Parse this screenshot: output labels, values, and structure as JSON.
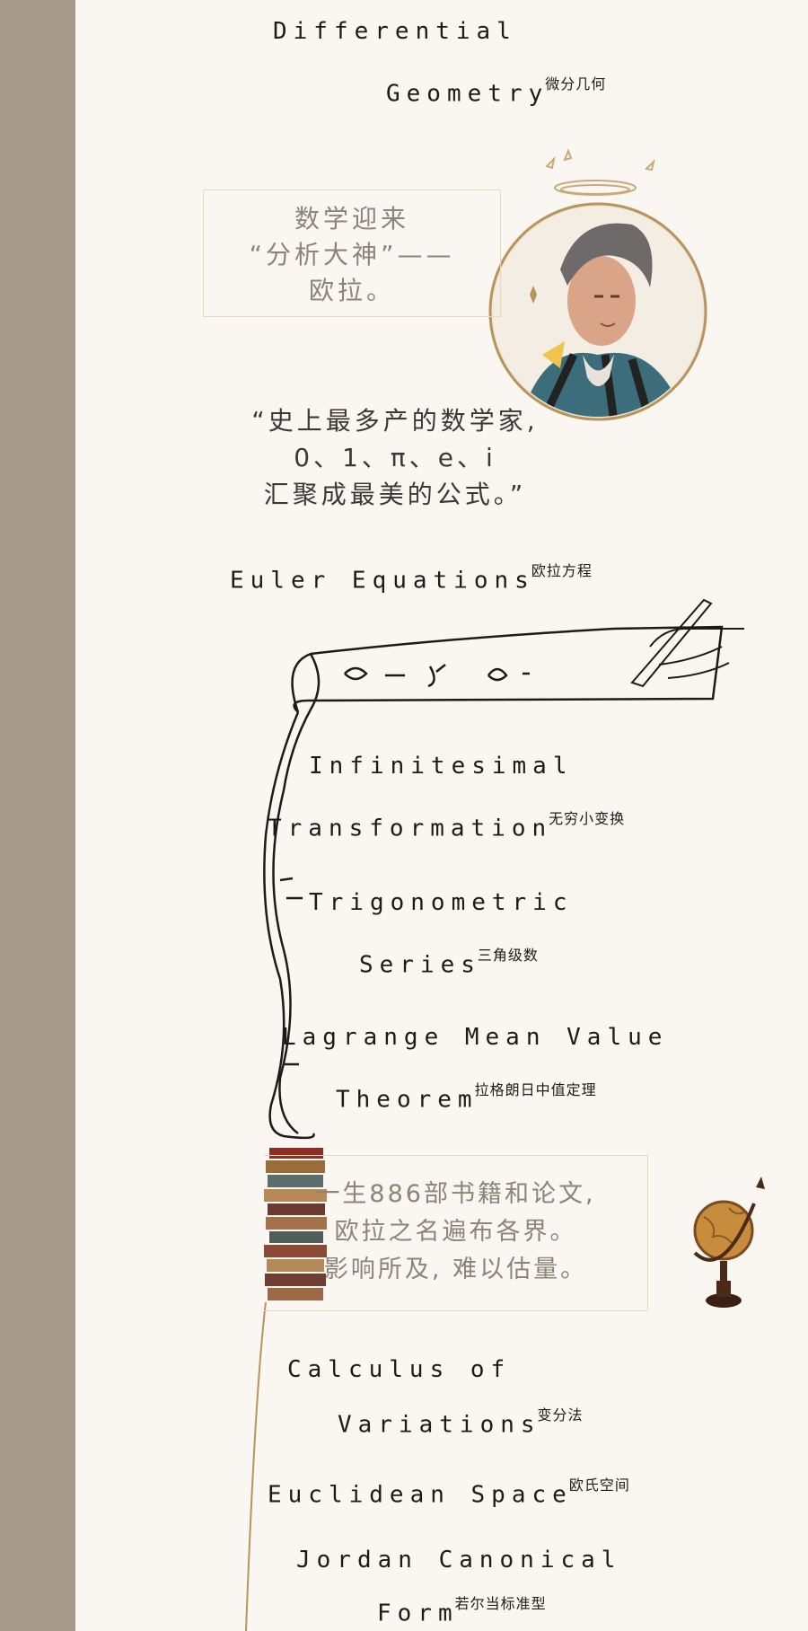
{
  "sections": {
    "differential": {
      "line1": "Differential",
      "line2": "Geometry",
      "cn": "微分几何"
    },
    "intro_box": {
      "lines": [
        "数学迎来",
        "“分析大神”——",
        "欧拉。"
      ]
    },
    "quote": {
      "lines": [
        "“史上最多产的数学家,",
        "0、1、π、e、i",
        "汇聚成最美的公式。”"
      ]
    },
    "euler": {
      "line1": "Euler Equations",
      "cn": "欧拉方程"
    },
    "infinitesimal": {
      "line1": "Infinitesimal",
      "line2": "Transformation",
      "cn": "无穷小变换"
    },
    "trig": {
      "line1": "Trigonometric",
      "line2": "Series",
      "cn": "三角级数"
    },
    "lagrange": {
      "line1": "Lagrange Mean Value",
      "line2": "Theorem",
      "cn": "拉格朗日中值定理"
    },
    "works_box": {
      "lines": [
        "一生886部书籍和论文,",
        "欧拉之名遍布各界。",
        "影响所及, 难以估量。"
      ]
    },
    "calculus": {
      "line1": "Calculus of",
      "line2": "Variations",
      "cn": "变分法"
    },
    "euclidean": {
      "line1": "Euclidean Space",
      "cn": "欧氏空间"
    },
    "jordan": {
      "line1": "Jordan Canonical",
      "line2": "Form",
      "cn": "若尔当标准型"
    }
  },
  "colors": {
    "sidebar": "#a79a8c",
    "background": "#faf6f2",
    "box_border": "#e9d9b6",
    "box_text": "#8e8378",
    "gold": "#b8935a"
  }
}
